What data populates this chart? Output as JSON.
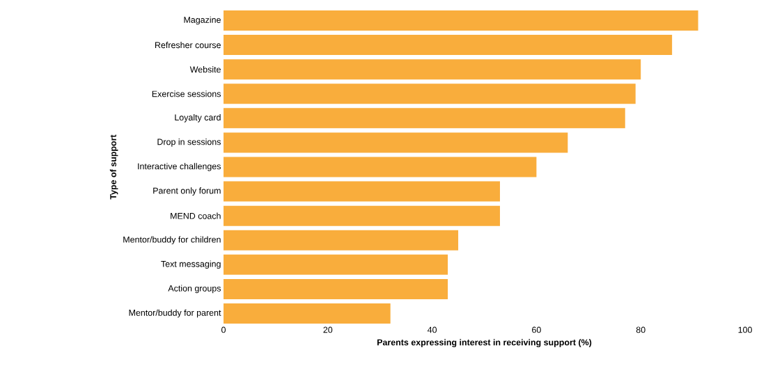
{
  "chart_data": {
    "type": "bar",
    "orientation": "horizontal",
    "xlabel": "Parents expressing interest in receiving support (%)",
    "ylabel": "Type of support",
    "categories": [
      "Magazine",
      "Refresher course",
      "Website",
      "Exercise sessions",
      "Loyalty card",
      "Drop in sessions",
      "Interactive challenges",
      "Parent only forum",
      "MEND coach",
      "Mentor/buddy for children",
      "Text messaging",
      "Action groups",
      "Mentor/buddy for parent"
    ],
    "values": [
      91,
      86,
      80,
      79,
      77,
      66,
      60,
      53,
      53,
      45,
      43,
      43,
      32
    ],
    "color": "#f9ad3c",
    "xlim": [
      0,
      100
    ],
    "xticks": [
      0,
      20,
      40,
      60,
      80,
      100
    ]
  }
}
